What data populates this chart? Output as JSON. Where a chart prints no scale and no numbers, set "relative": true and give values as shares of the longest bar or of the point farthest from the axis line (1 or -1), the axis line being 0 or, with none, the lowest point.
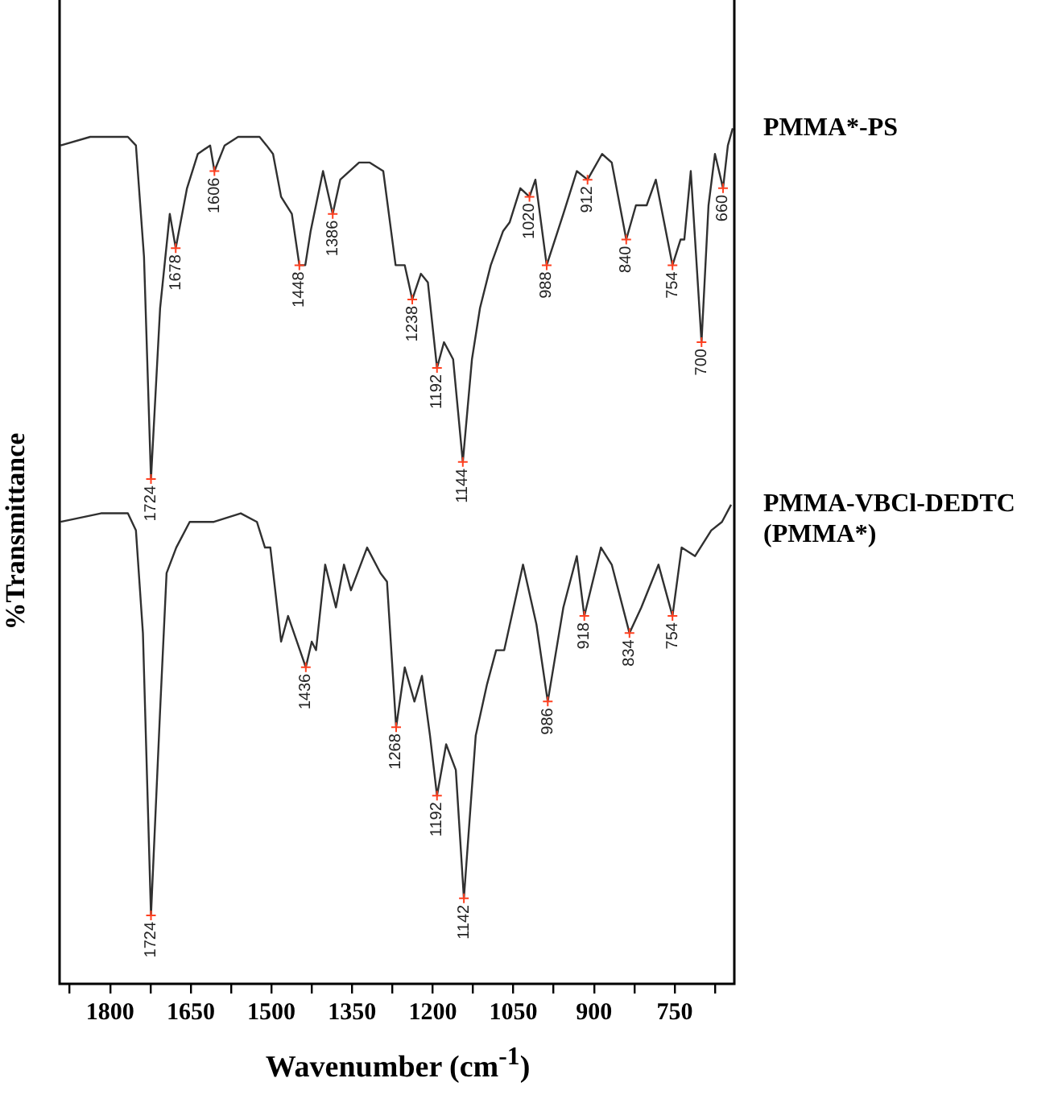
{
  "chart_data": {
    "type": "line",
    "relative": true,
    "xlabel": "Wavenumber (cm$^{-1}$)",
    "ylabel": "%Transmittance",
    "xlim": [
      1894,
      639
    ],
    "xticks": [
      {
        "value": 1875,
        "label": null
      },
      1800,
      {
        "value": 1725,
        "label": null
      },
      1650,
      {
        "value": 1575,
        "label": null
      },
      1500,
      {
        "value": 1425,
        "label": null
      },
      1350,
      {
        "value": 1275,
        "label": null
      },
      1200,
      {
        "value": 1125,
        "label": null
      },
      1050,
      {
        "value": 975,
        "label": null
      },
      900,
      {
        "value": 825,
        "label": null
      },
      750,
      {
        "value": 675,
        "label": null
      }
    ],
    "grid": false,
    "legend": false,
    "marker": "none",
    "line_style": "solid",
    "series": [
      {
        "name": "PMMA*-PS",
        "color": "#303030",
        "x": [
          1892,
          1837,
          1767,
          1752,
          1737,
          1724,
          1707,
          1689,
          1678,
          1657,
          1637,
          1614,
          1606,
          1587,
          1562,
          1522,
          1509,
          1497,
          1482,
          1462,
          1448,
          1437,
          1427,
          1404,
          1386,
          1372,
          1337,
          1317,
          1292,
          1269,
          1252,
          1238,
          1222,
          1209,
          1192,
          1179,
          1162,
          1144,
          1127,
          1112,
          1092,
          1069,
          1057,
          1037,
          1020,
          1009,
          988,
          957,
          932,
          912,
          885,
          867,
          840,
          822,
          802,
          785,
          754,
          739,
          732,
          720,
          700,
          687,
          675,
          660,
          651,
          642
        ],
        "values": [
          0.98,
          0.99,
          0.99,
          0.98,
          0.85,
          0.59,
          0.79,
          0.9,
          0.86,
          0.93,
          0.97,
          0.98,
          0.95,
          0.98,
          0.99,
          0.99,
          0.98,
          0.97,
          0.92,
          0.9,
          0.84,
          0.84,
          0.88,
          0.95,
          0.9,
          0.94,
          0.96,
          0.96,
          0.95,
          0.84,
          0.84,
          0.8,
          0.83,
          0.82,
          0.72,
          0.75,
          0.73,
          0.61,
          0.73,
          0.79,
          0.84,
          0.88,
          0.89,
          0.93,
          0.92,
          0.94,
          0.84,
          0.9,
          0.95,
          0.94,
          0.97,
          0.96,
          0.87,
          0.91,
          0.91,
          0.94,
          0.84,
          0.87,
          0.87,
          0.95,
          0.75,
          0.91,
          0.97,
          0.93,
          0.98,
          1
        ]
      },
      {
        "name": "PMMA-VBCl-DEDTC (PMMA*)",
        "color": "#303030",
        "x": [
          1892,
          1817,
          1767,
          1752,
          1739,
          1724,
          1707,
          1695,
          1677,
          1652,
          1607,
          1557,
          1527,
          1512,
          1502,
          1482,
          1469,
          1436,
          1425,
          1417,
          1400,
          1380,
          1365,
          1352,
          1322,
          1297,
          1285,
          1268,
          1252,
          1234,
          1220,
          1205,
          1192,
          1175,
          1157,
          1142,
          1120,
          1099,
          1082,
          1067,
          1032,
          1007,
          986,
          957,
          932,
          918,
          887,
          867,
          834,
          812,
          780,
          754,
          737,
          712,
          682,
          662,
          645
        ],
        "values": [
          0.54,
          0.55,
          0.55,
          0.53,
          0.41,
          0.08,
          0.32,
          0.48,
          0.51,
          0.54,
          0.54,
          0.55,
          0.54,
          0.51,
          0.51,
          0.4,
          0.43,
          0.37,
          0.4,
          0.39,
          0.49,
          0.44,
          0.49,
          0.46,
          0.51,
          0.48,
          0.47,
          0.3,
          0.37,
          0.33,
          0.36,
          0.29,
          0.22,
          0.28,
          0.25,
          0.1,
          0.29,
          0.35,
          0.39,
          0.39,
          0.49,
          0.42,
          0.33,
          0.44,
          0.5,
          0.43,
          0.51,
          0.49,
          0.41,
          0.44,
          0.49,
          0.43,
          0.51,
          0.5,
          0.53,
          0.54,
          0.56
        ]
      }
    ],
    "annotations": [
      {
        "text": "1724",
        "x": 1724,
        "y": 0.59
      },
      {
        "text": "1678",
        "x": 1678,
        "y": 0.86
      },
      {
        "text": "1606",
        "x": 1606,
        "y": 0.95
      },
      {
        "text": "1448",
        "x": 1448,
        "y": 0.84
      },
      {
        "text": "1386",
        "x": 1386,
        "y": 0.9
      },
      {
        "text": "1238",
        "x": 1238,
        "y": 0.8
      },
      {
        "text": "1192",
        "x": 1192,
        "y": 0.72
      },
      {
        "text": "1144",
        "x": 1144,
        "y": 0.61
      },
      {
        "text": "1020",
        "x": 1020,
        "y": 0.92
      },
      {
        "text": "988",
        "x": 988,
        "y": 0.84
      },
      {
        "text": "912",
        "x": 912,
        "y": 0.94
      },
      {
        "text": "840",
        "x": 840,
        "y": 0.87
      },
      {
        "text": "754",
        "x": 754,
        "y": 0.84
      },
      {
        "text": "700",
        "x": 700,
        "y": 0.75
      },
      {
        "text": "660",
        "x": 660,
        "y": 0.93
      },
      {
        "text": "1724",
        "x": 1724,
        "y": 0.08
      },
      {
        "text": "1436",
        "x": 1436,
        "y": 0.37
      },
      {
        "text": "1268",
        "x": 1268,
        "y": 0.3
      },
      {
        "text": "1192",
        "x": 1192,
        "y": 0.22
      },
      {
        "text": "1142",
        "x": 1142,
        "y": 0.1
      },
      {
        "text": "986",
        "x": 986,
        "y": 0.33
      },
      {
        "text": "918",
        "x": 918,
        "y": 0.43
      },
      {
        "text": "834",
        "x": 834,
        "y": 0.41
      },
      {
        "text": "754",
        "x": 754,
        "y": 0.43
      }
    ]
  }
}
